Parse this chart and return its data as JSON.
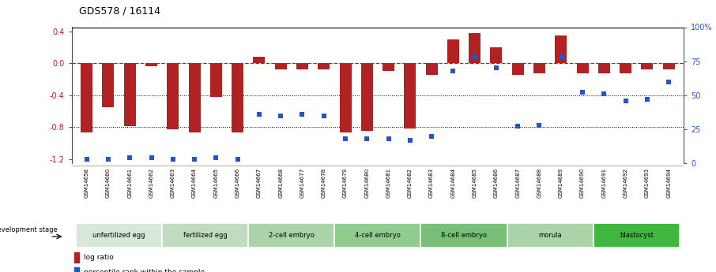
{
  "title": "GDS578 / 16114",
  "samples": [
    "GSM14658",
    "GSM14660",
    "GSM14661",
    "GSM14662",
    "GSM14663",
    "GSM14664",
    "GSM14665",
    "GSM14666",
    "GSM14667",
    "GSM14668",
    "GSM14677",
    "GSM14678",
    "GSM14679",
    "GSM14680",
    "GSM14681",
    "GSM14682",
    "GSM14683",
    "GSM14684",
    "GSM14685",
    "GSM14686",
    "GSM14687",
    "GSM14688",
    "GSM14689",
    "GSM14690",
    "GSM14691",
    "GSM14692",
    "GSM14693",
    "GSM14694"
  ],
  "log_ratio": [
    -0.87,
    -0.55,
    -0.79,
    -0.04,
    -0.83,
    -0.87,
    -0.42,
    -0.87,
    0.08,
    -0.08,
    -0.08,
    -0.08,
    -0.87,
    -0.85,
    -0.1,
    -0.82,
    -0.15,
    0.3,
    0.38,
    0.2,
    -0.15,
    -0.13,
    0.35,
    -0.13,
    -0.13,
    -0.13,
    -0.08,
    -0.08
  ],
  "percentile_rank": [
    3,
    3,
    4,
    4,
    3,
    3,
    4,
    3,
    36,
    35,
    36,
    35,
    18,
    18,
    18,
    17,
    20,
    68,
    78,
    70,
    27,
    28,
    78,
    52,
    51,
    46,
    47,
    60
  ],
  "bar_color": "#b22222",
  "dot_color": "#2255cc",
  "ylim_left": [
    -1.25,
    0.45
  ],
  "ylim_right": [
    0,
    100
  ],
  "y_ticks_left": [
    0.4,
    0.0,
    -0.4,
    -0.8,
    -1.2
  ],
  "y_ticks_right": [
    100,
    75,
    50,
    25,
    0
  ],
  "groups": [
    {
      "label": "unfertilized egg",
      "start": 0,
      "end": 3
    },
    {
      "label": "fertilized egg",
      "start": 4,
      "end": 7
    },
    {
      "label": "2-cell embryo",
      "start": 8,
      "end": 11
    },
    {
      "label": "4-cell embryo",
      "start": 12,
      "end": 15
    },
    {
      "label": "8-cell embryo",
      "start": 16,
      "end": 19
    },
    {
      "label": "morula",
      "start": 20,
      "end": 23
    },
    {
      "label": "blastocyst",
      "start": 24,
      "end": 27
    }
  ],
  "group_colors": [
    "#d8e8d8",
    "#c0dcc0",
    "#a8d4a8",
    "#90cc90",
    "#78c078",
    "#a8d4a8",
    "#40b840"
  ],
  "development_stage_label": "development stage",
  "legend_log_ratio": "log ratio",
  "legend_percentile": "percentile rank within the sample",
  "background_color": "#ffffff"
}
